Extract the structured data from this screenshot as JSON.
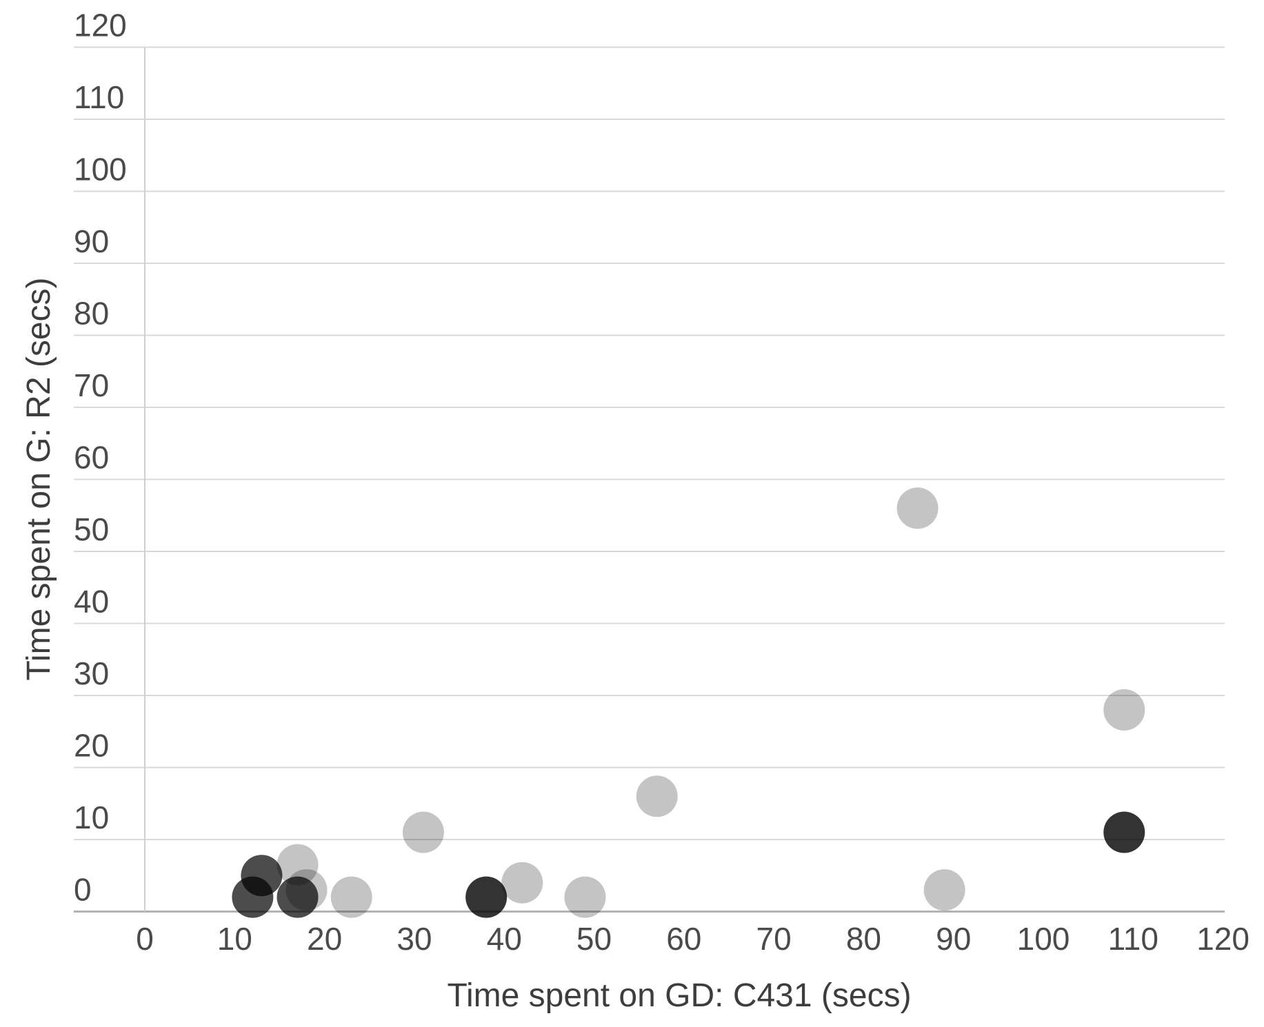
{
  "chart_data": {
    "type": "scatter",
    "subtype": "bubble",
    "title": "",
    "xlabel": "Time spent on GD: C431 (secs)",
    "ylabel": "Time spent on G: R2 (secs)",
    "xlim": [
      0,
      120
    ],
    "ylim": [
      0,
      120
    ],
    "xticks": [
      0,
      10,
      20,
      30,
      40,
      50,
      60,
      70,
      80,
      90,
      100,
      110,
      120
    ],
    "yticks": [
      0,
      10,
      20,
      30,
      40,
      50,
      60,
      70,
      80,
      90,
      100,
      110,
      120
    ],
    "grid": "horizontal-only",
    "legend": "none",
    "grid_color": "#d9d9d9",
    "zero_line_color": "#b3b3b3",
    "axis_line_color": "#cfcfcf",
    "tick_text_color": "#4a4a4a",
    "title_text_color": "#3d3d3d",
    "series": [
      {
        "name": "light-gray-bubbles",
        "color": "rgba(0,0,0,0.23)",
        "points": [
          {
            "x": 17,
            "y": 6.5
          },
          {
            "x": 18,
            "y": 3
          },
          {
            "x": 23,
            "y": 2
          },
          {
            "x": 31,
            "y": 11
          },
          {
            "x": 42,
            "y": 4
          },
          {
            "x": 49,
            "y": 2
          },
          {
            "x": 57,
            "y": 16
          },
          {
            "x": 86,
            "y": 56
          },
          {
            "x": 89,
            "y": 3
          },
          {
            "x": 109,
            "y": 28
          }
        ]
      },
      {
        "name": "dark-gray-bubbles",
        "color": "rgba(0,0,0,0.70)",
        "points": [
          {
            "x": 12,
            "y": 2
          },
          {
            "x": 13,
            "y": 5
          },
          {
            "x": 17,
            "y": 2
          }
        ]
      },
      {
        "name": "darkest-bubbles",
        "color": "rgba(0,0,0,0.80)",
        "points": [
          {
            "x": 38,
            "y": 2
          },
          {
            "x": 109,
            "y": 11
          }
        ]
      }
    ]
  }
}
